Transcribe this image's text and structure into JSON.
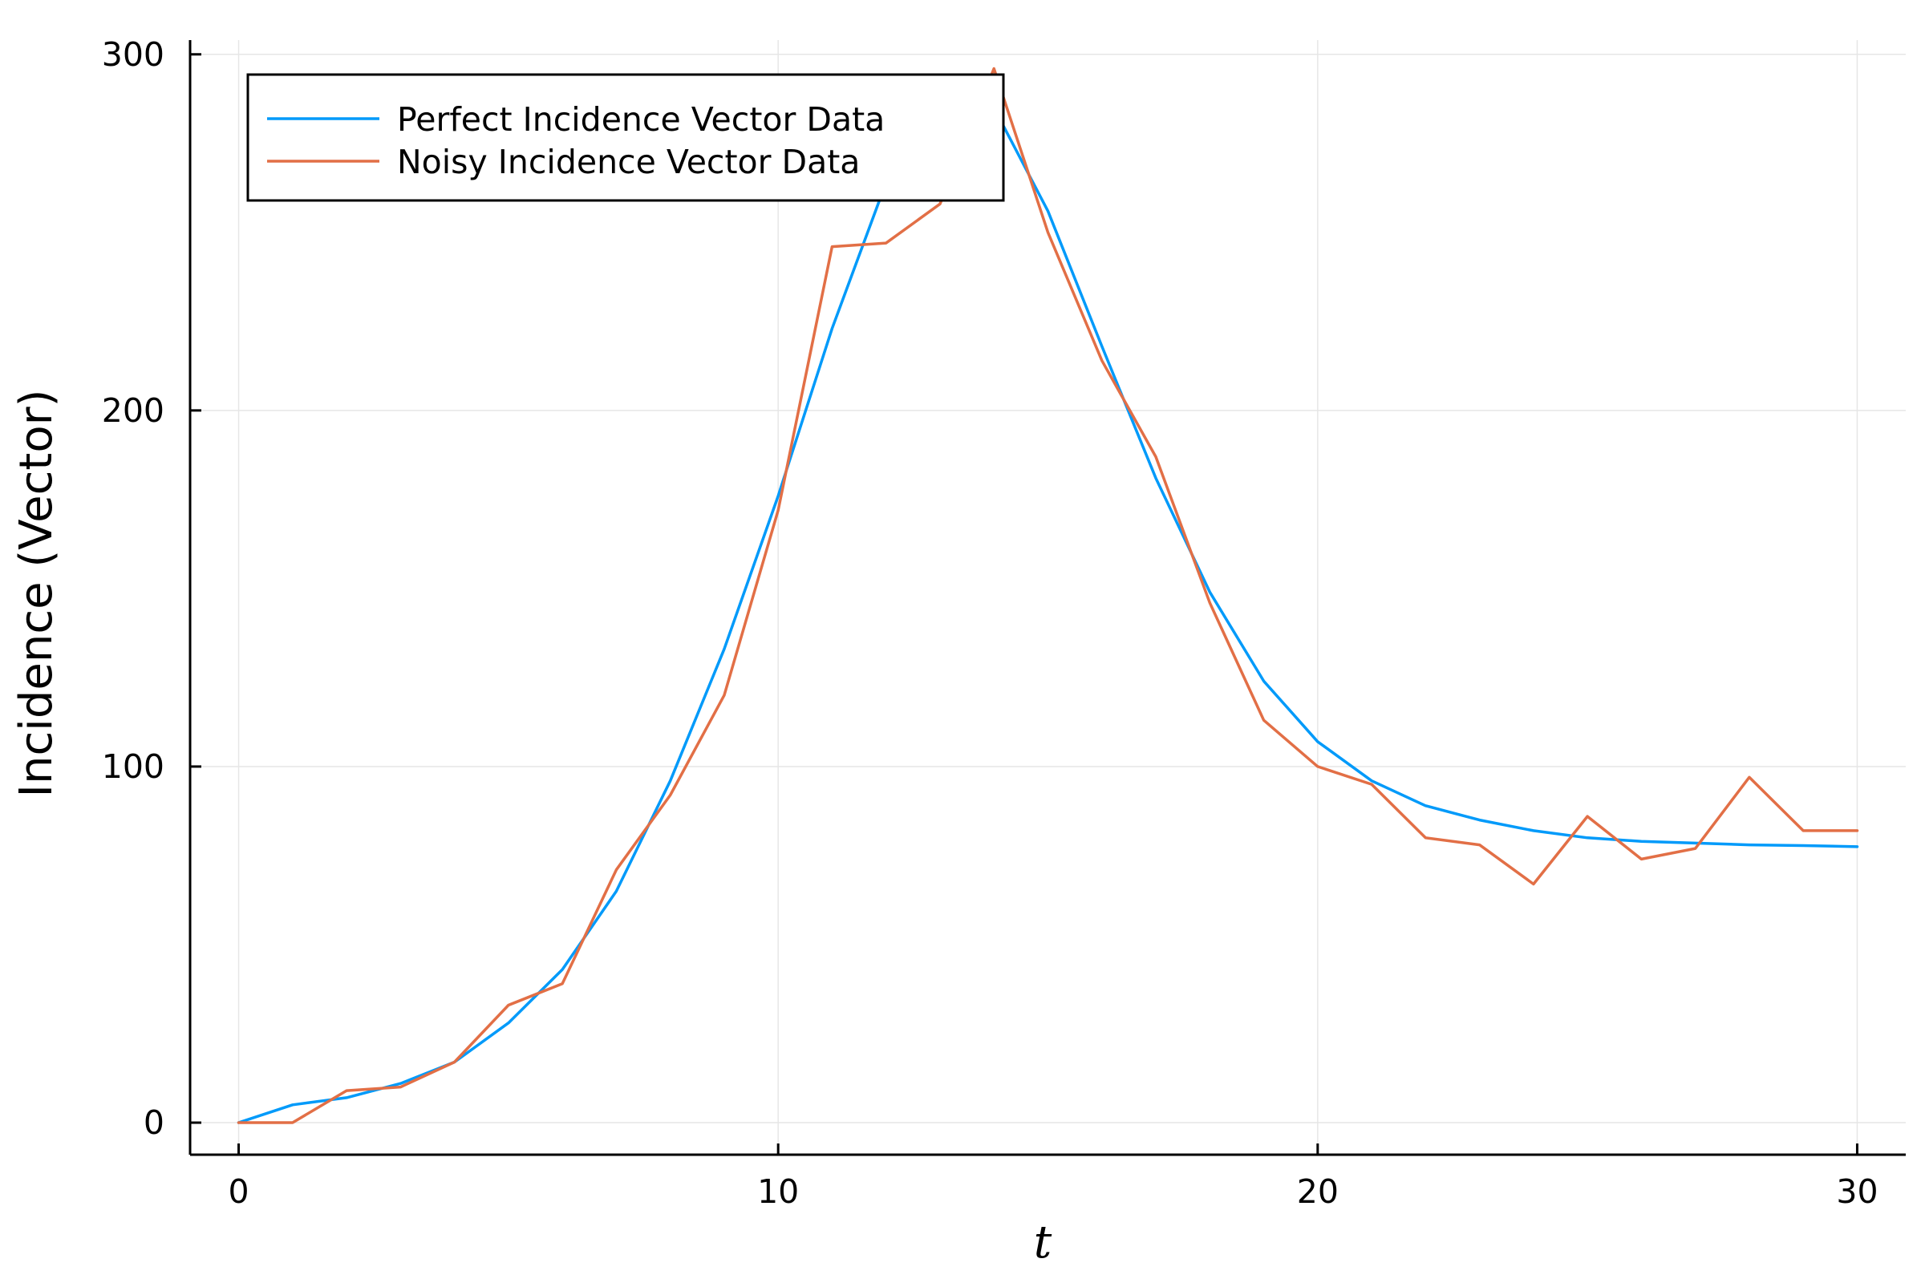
{
  "chart_data": {
    "type": "line",
    "xlabel": "t",
    "ylabel": "Incidence (Vector)",
    "xlim": [
      -0.9,
      30.9
    ],
    "ylim": [
      -9,
      304
    ],
    "xticks": [
      0,
      10,
      20,
      30
    ],
    "yticks": [
      0,
      100,
      200,
      300
    ],
    "grid": true,
    "legend_position": "top-left",
    "x": [
      0,
      1,
      2,
      3,
      4,
      5,
      6,
      7,
      8,
      9,
      10,
      11,
      12,
      13,
      14,
      15,
      16,
      17,
      18,
      19,
      20,
      21,
      22,
      23,
      24,
      25,
      26,
      27,
      28,
      29,
      30
    ],
    "series": [
      {
        "name": "Perfect Incidence Vector Data",
        "color": "#009afa",
        "values": [
          0,
          5,
          7,
          11,
          17,
          28,
          43,
          65,
          96,
          133,
          176,
          223,
          264,
          286,
          285,
          256,
          218,
          181,
          149,
          124,
          107,
          96,
          89,
          85,
          82,
          80,
          79,
          78.5,
          78,
          77.8,
          77.5
        ]
      },
      {
        "name": "Noisy Incidence Vector Data",
        "color": "#e26f46",
        "values": [
          0,
          0,
          9,
          10,
          17,
          33,
          39,
          71,
          92,
          120,
          172,
          246,
          247,
          258,
          296,
          250,
          214,
          187,
          146,
          113,
          100,
          95,
          80,
          78,
          67,
          86,
          74,
          77,
          97,
          82,
          82
        ]
      }
    ]
  }
}
